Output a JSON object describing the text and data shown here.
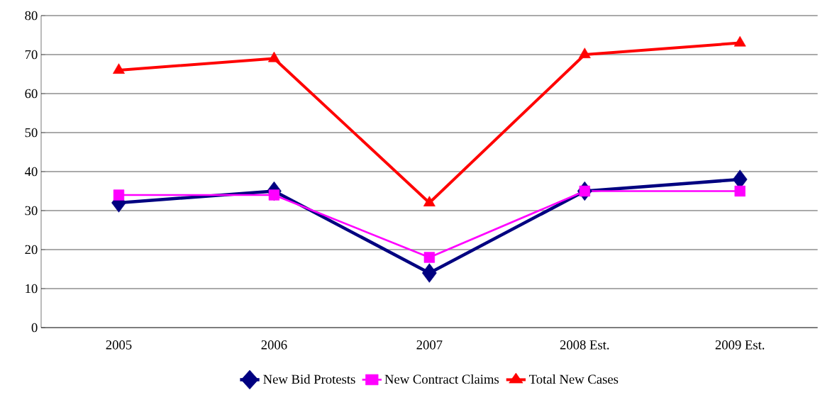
{
  "chart_data": {
    "type": "line",
    "categories": [
      "2005",
      "2006",
      "2007",
      "2008 Est.",
      "2009 Est."
    ],
    "ylim": [
      0,
      80
    ],
    "yticks": [
      0,
      10,
      20,
      30,
      40,
      50,
      60,
      70,
      80
    ],
    "grid": "y",
    "legend": "bottom",
    "line_style": "solid",
    "series": [
      {
        "name": "New Bid Protests",
        "color": "#000080",
        "marker": "diamond",
        "values": [
          32,
          35,
          14,
          35,
          38
        ]
      },
      {
        "name": "New Contract Claims",
        "color": "#ff00ff",
        "marker": "square",
        "values": [
          34,
          34,
          18,
          35,
          35
        ]
      },
      {
        "name": "Total New Cases",
        "color": "#ff0000",
        "marker": "triangle",
        "values": [
          66,
          69,
          32,
          70,
          73
        ]
      }
    ]
  }
}
